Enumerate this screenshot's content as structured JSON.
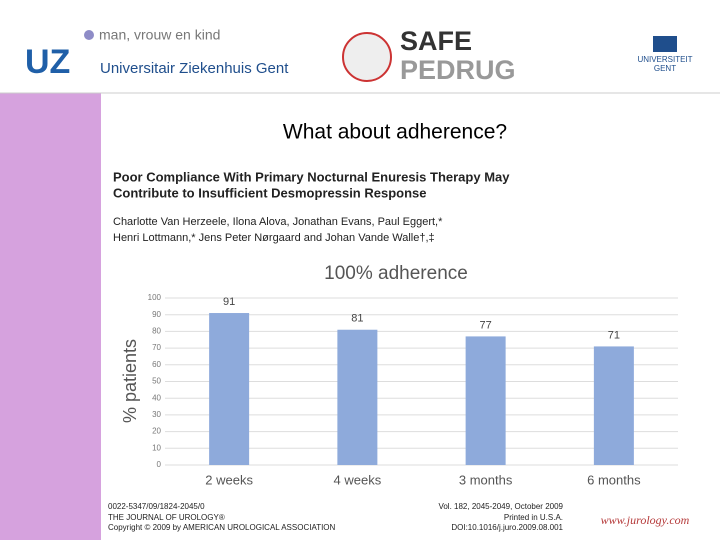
{
  "header": {
    "tagline": "man, vrouw en kind",
    "logo_left": "UZ",
    "hospital": "Universitair Ziekenhuis Gent",
    "logo_center_top": "SAFE",
    "logo_center_bottom": "PEDRUG",
    "logo_right": [
      "UNIVERSITEIT",
      "GENT"
    ]
  },
  "slide_title": "What about adherence?",
  "paper": {
    "title_lines": [
      "Poor Compliance With Primary Nocturnal Enuresis Therapy May",
      "Contribute to Insufficient Desmopressin Response"
    ],
    "authors_lines": [
      "Charlotte Van Herzeele, Ilona Alova, Jonathan Evans, Paul Eggert,*",
      "Henri Lottmann,* Jens Peter Nørgaard and Johan Vande Walle†,‡"
    ]
  },
  "chart_data": {
    "type": "bar",
    "title": "100% adherence",
    "y_label": "% patients",
    "categories": [
      "2 weeks",
      "4 weeks",
      "3 months",
      "6 months"
    ],
    "values": [
      91,
      81,
      77,
      71
    ],
    "color": "#8eaadb",
    "ylim": [
      0,
      100
    ],
    "yticks": [
      0,
      10,
      20,
      30,
      40,
      50,
      60,
      70,
      80,
      90,
      100
    ],
    "grid": true
  },
  "footer": {
    "left": [
      "0022-5347/09/1824-2045/0",
      "THE JOURNAL OF UROLOGY®",
      "Copyright © 2009 by AMERICAN UROLOGICAL ASSOCIATION"
    ],
    "right": [
      "Vol. 182, 2045-2049, October 2009",
      "Printed in U.S.A.",
      "DOI:10.1016/j.juro.2009.08.001"
    ],
    "website": "www.jurology.com"
  }
}
